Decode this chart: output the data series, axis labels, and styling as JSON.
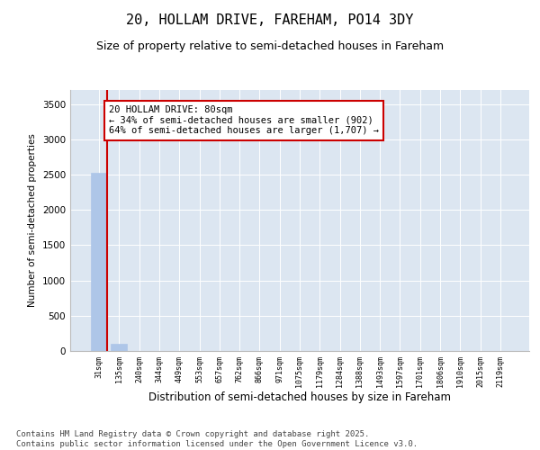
{
  "title": "20, HOLLAM DRIVE, FAREHAM, PO14 3DY",
  "subtitle": "Size of property relative to semi-detached houses in Fareham",
  "xlabel": "Distribution of semi-detached houses by size in Fareham",
  "ylabel": "Number of semi-detached properties",
  "categories": [
    "31sqm",
    "135sqm",
    "240sqm",
    "344sqm",
    "449sqm",
    "553sqm",
    "657sqm",
    "762sqm",
    "866sqm",
    "971sqm",
    "1075sqm",
    "1179sqm",
    "1284sqm",
    "1388sqm",
    "1493sqm",
    "1597sqm",
    "1701sqm",
    "1806sqm",
    "1910sqm",
    "2015sqm",
    "2119sqm"
  ],
  "values": [
    2530,
    100,
    0,
    0,
    0,
    0,
    0,
    0,
    0,
    0,
    0,
    0,
    0,
    0,
    0,
    0,
    0,
    0,
    0,
    0,
    0
  ],
  "bar_color": "#aec6e8",
  "bar_edge_color": "#aec6e8",
  "highlight_color": "#cc0000",
  "annotation_text": "20 HOLLAM DRIVE: 80sqm\n← 34% of semi-detached houses are smaller (902)\n64% of semi-detached houses are larger (1,707) →",
  "annotation_box_color": "#ffffff",
  "annotation_box_edge_color": "#cc0000",
  "ylim": [
    0,
    3700
  ],
  "yticks": [
    0,
    500,
    1000,
    1500,
    2000,
    2500,
    3000,
    3500
  ],
  "plot_bg_color": "#dce6f1",
  "footer_text": "Contains HM Land Registry data © Crown copyright and database right 2025.\nContains public sector information licensed under the Open Government Licence v3.0.",
  "title_fontsize": 11,
  "subtitle_fontsize": 9,
  "annotation_fontsize": 7.5,
  "footer_fontsize": 6.5
}
